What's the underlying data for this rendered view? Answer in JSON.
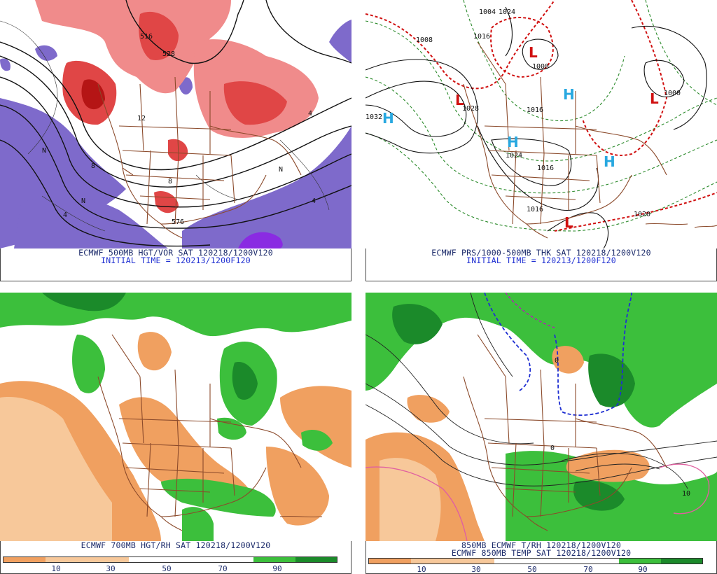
{
  "panels": {
    "vort": {
      "title": "ECMWF 500MB HGT/VOR SAT 120218/1200V120",
      "init": "INITIAL TIME = 120213/1200F120",
      "labels": [
        "528",
        "516",
        "576",
        "8",
        "8",
        "12",
        "4",
        "4",
        "N",
        "N",
        "N",
        "4"
      ]
    },
    "pres": {
      "title": "ECMWF PRS/1000-500MB THK SAT 120218/1200V120",
      "init": "INITIAL TIME = 120213/1200F120",
      "labels": [
        "1008",
        "1016",
        "1008",
        "1024",
        "1028",
        "1016",
        "1000",
        "1004",
        "1016",
        "1024",
        "1016",
        "1020",
        "1032"
      ],
      "high_symbol": "H",
      "low_symbol": "L"
    },
    "rh700": {
      "title": "ECMWF 700MB HGT/RH SAT 120218/1200V120",
      "scale": [
        "10",
        "30",
        "50",
        "70",
        "90"
      ]
    },
    "t850": {
      "title1": "850MB ECMWF T/RH 120218/1200V120",
      "title2": "ECMWF 850MB TEMP SAT 120218/1200V120",
      "labels": [
        "0",
        "0",
        "10"
      ],
      "scale": [
        "10",
        "30",
        "50",
        "70",
        "90"
      ]
    }
  },
  "colors": {
    "vort_red_light": "#f08b8b",
    "vort_red": "#e04646",
    "vort_red_dark": "#b51515",
    "vort_purple": "#7e6acb",
    "vort_purple_bright": "#8a2be2",
    "pres_thickness": "#2a8a2a",
    "pres_thickness_red": "#d01010",
    "pres_high": "#28a8e0",
    "pres_low": "#d01010",
    "rh_orange_dark": "#f0a060",
    "rh_orange_light": "#f7c89a",
    "rh_green_light": "#3cbf3c",
    "rh_green_dark": "#1b8a2a",
    "borders": "#8b4a2b",
    "caption": "#1b2a6a"
  }
}
